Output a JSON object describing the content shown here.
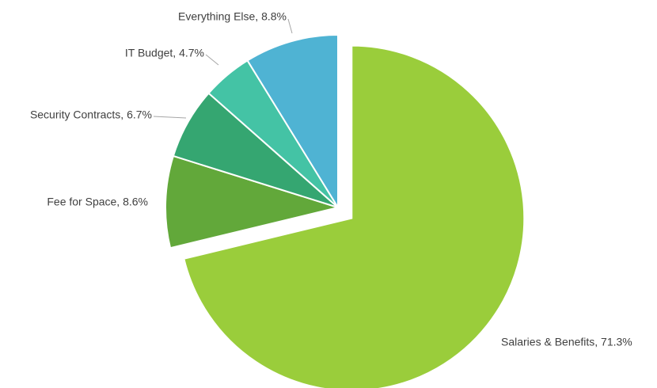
{
  "chart_data": {
    "type": "pie",
    "slices": [
      {
        "label": "Salaries & Benefits",
        "value": 71.3,
        "label_text": "Salaries & Benefits, 71.3%",
        "color": "#9ACD3B",
        "exploded": true
      },
      {
        "label": "Fee for Space",
        "value": 8.6,
        "label_text": "Fee for Space, 8.6%",
        "color": "#62A83A",
        "exploded": false
      },
      {
        "label": "Security Contracts",
        "value": 6.7,
        "label_text": "Security Contracts, 6.7%",
        "color": "#35A671",
        "exploded": false
      },
      {
        "label": "IT Budget",
        "value": 4.7,
        "label_text": "IT Budget, 4.7%",
        "color": "#44C3A5",
        "exploded": false
      },
      {
        "label": "Everything Else",
        "value": 8.8,
        "label_text": "Everything Else, 8.8%",
        "color": "#4FB3D3",
        "exploded": false
      }
    ],
    "start_angle_deg": 0,
    "direction": "clockwise",
    "legend": "none"
  }
}
